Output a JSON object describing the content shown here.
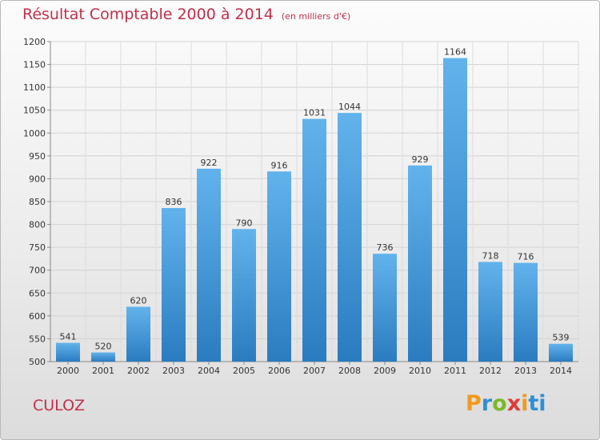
{
  "header": {
    "title": "Résultat Comptable 2000 à 2014",
    "unit": "(en milliers d'€)"
  },
  "footer": {
    "commune": "CULOZ",
    "logo": "Proxiti",
    "logo_letters": [
      "P",
      "r",
      "o",
      "x",
      "i",
      "ti"
    ]
  },
  "colors": {
    "title": "#c2304a",
    "bar_top": "#62b3ec",
    "bar_bottom": "#2a7cc0"
  },
  "chart_data": {
    "type": "bar",
    "title": "Résultat Comptable 2000 à 2014",
    "ylabel": "en milliers d'€",
    "xlabel": "",
    "categories": [
      "2000",
      "2001",
      "2002",
      "2003",
      "2004",
      "2005",
      "2006",
      "2007",
      "2008",
      "2009",
      "2010",
      "2011",
      "2012",
      "2013",
      "2014"
    ],
    "values": [
      541,
      520,
      620,
      836,
      922,
      790,
      916,
      1031,
      1044,
      736,
      929,
      1164,
      718,
      716,
      539
    ],
    "ylim": [
      500,
      1200
    ],
    "yticks": [
      500,
      550,
      600,
      650,
      700,
      750,
      800,
      850,
      900,
      950,
      1000,
      1050,
      1100,
      1150,
      1200
    ],
    "grid": true
  }
}
